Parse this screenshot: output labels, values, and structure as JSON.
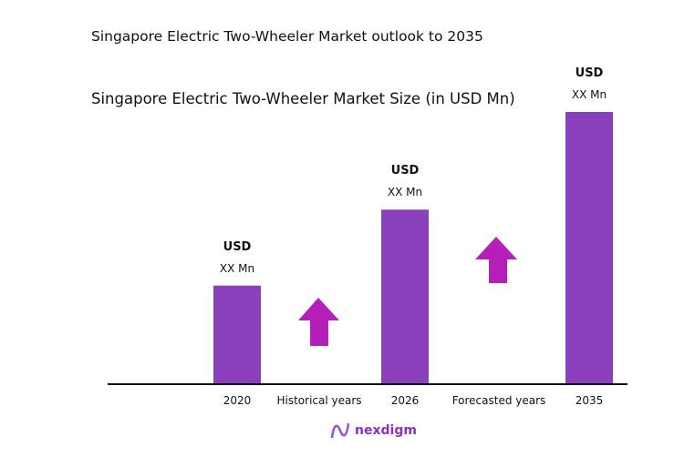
{
  "chart_data": {
    "type": "bar",
    "title": "Singapore Electric Two-Wheeler Market outlook to 2035",
    "subtitle": "Singapore Electric Two-Wheeler Market Size (in USD Mn)",
    "categories": [
      "2020",
      "2026",
      "2035"
    ],
    "relative_values_percent_of_max": [
      36,
      64,
      100
    ],
    "data_labels": [
      {
        "top": "USD",
        "bottom": "XX Mn"
      },
      {
        "top": "USD",
        "bottom": "XX Mn"
      },
      {
        "top": "USD",
        "bottom": "XX Mn"
      }
    ],
    "period_labels": [
      "Historical years",
      "Forecasted years"
    ],
    "bar_color": "#8a40bb",
    "arrow_color": "#b31fb8",
    "grid": false
  },
  "logo": {
    "text": "nexdigm"
  }
}
